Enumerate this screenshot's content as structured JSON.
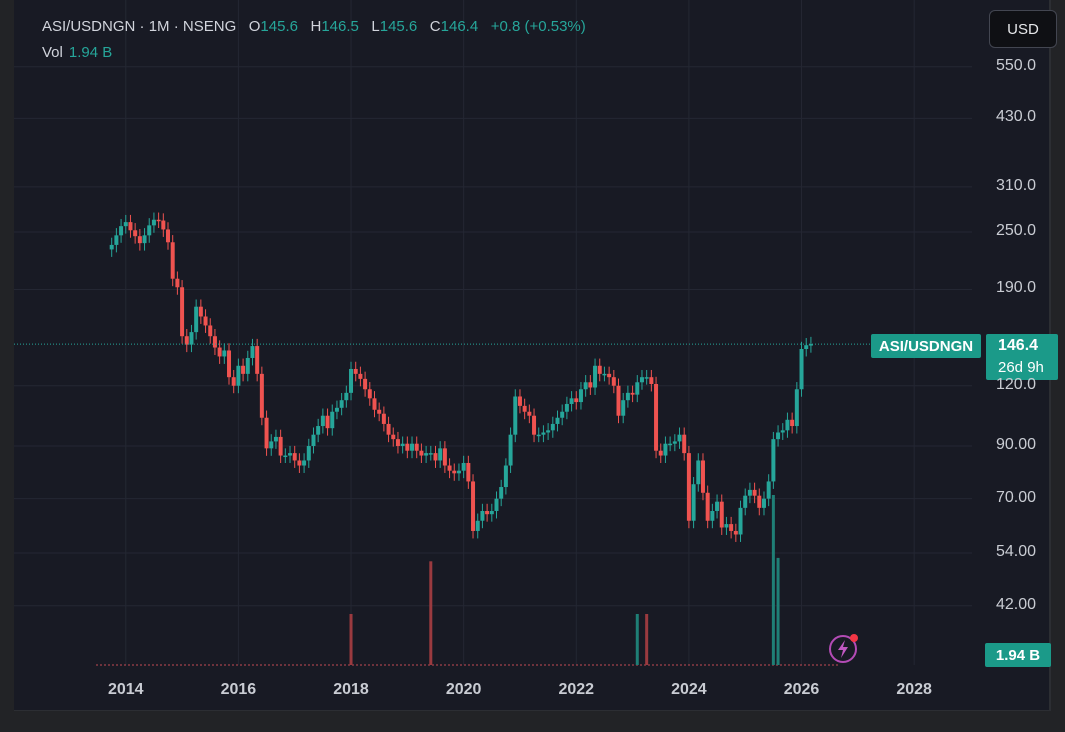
{
  "header": {
    "symbol": "ASI/USDNGN",
    "interval": "1M",
    "exchange": "NSENG",
    "open_label": "O",
    "open": "145.6",
    "high_label": "H",
    "high": "146.5",
    "low_label": "L",
    "low": "145.6",
    "close_label": "C",
    "close": "146.4",
    "change": "+0.8 (+0.53%)",
    "volume_label": "Vol",
    "volume": "1.94 B"
  },
  "currency_button": "USD",
  "price_label": {
    "symbol": "ASI/USDNGN",
    "price": "146.4",
    "countdown": "26d 9h"
  },
  "volume_axis_label": "1.94 B",
  "colors": {
    "up": "#26a69a",
    "down": "#ef5350",
    "background": "#181a24",
    "grid": "#242733"
  },
  "icons": [
    "lightning-icon"
  ],
  "chart_data": {
    "type": "candlestick",
    "y_scale": "log",
    "ylim": [
      36,
      640
    ],
    "y_ticks": [
      "550.0",
      "430.0",
      "310.0",
      "250.0",
      "190.0",
      "120.0",
      "90.00",
      "70.00",
      "54.00",
      "42.00"
    ],
    "x_ticks": [
      "2014",
      "2016",
      "2018",
      "2020",
      "2022",
      "2024",
      "2026",
      "2028"
    ],
    "xlim": [
      "2013-09",
      "2028-08"
    ],
    "last_price": 146.4,
    "grid": true,
    "volume_bars": [
      {
        "date": "2018-01",
        "direction": "down",
        "relative": 0.3
      },
      {
        "date": "2019-06",
        "direction": "down",
        "relative": 0.61
      },
      {
        "date": "2023-02",
        "direction": "up",
        "relative": 0.3
      },
      {
        "date": "2023-04",
        "direction": "down",
        "relative": 0.3
      },
      {
        "date": "2025-07",
        "direction": "up",
        "relative": 1.0
      },
      {
        "date": "2025-08",
        "direction": "up",
        "relative": 0.63
      }
    ],
    "closes": [
      [
        "2013-10",
        235
      ],
      [
        "2013-11",
        246
      ],
      [
        "2013-12",
        257
      ],
      [
        "2014-01",
        262
      ],
      [
        "2014-02",
        252
      ],
      [
        "2014-03",
        245
      ],
      [
        "2014-04",
        237
      ],
      [
        "2014-05",
        246
      ],
      [
        "2014-06",
        258
      ],
      [
        "2014-07",
        265
      ],
      [
        "2014-08",
        264
      ],
      [
        "2014-09",
        253
      ],
      [
        "2014-10",
        238
      ],
      [
        "2014-11",
        200
      ],
      [
        "2014-12",
        192
      ],
      [
        "2015-01",
        152
      ],
      [
        "2015-02",
        146
      ],
      [
        "2015-03",
        155
      ],
      [
        "2015-04",
        175
      ],
      [
        "2015-05",
        167
      ],
      [
        "2015-06",
        160
      ],
      [
        "2015-07",
        152
      ],
      [
        "2015-08",
        144
      ],
      [
        "2015-09",
        138
      ],
      [
        "2015-10",
        142
      ],
      [
        "2015-11",
        125
      ],
      [
        "2015-12",
        120
      ],
      [
        "2016-01",
        132
      ],
      [
        "2016-02",
        127
      ],
      [
        "2016-03",
        137
      ],
      [
        "2016-04",
        145
      ],
      [
        "2016-05",
        127
      ],
      [
        "2016-06",
        103
      ],
      [
        "2016-07",
        89
      ],
      [
        "2016-08",
        92
      ],
      [
        "2016-09",
        94
      ],
      [
        "2016-10",
        86
      ],
      [
        "2016-11",
        86
      ],
      [
        "2016-12",
        87
      ],
      [
        "2017-01",
        84
      ],
      [
        "2017-02",
        82
      ],
      [
        "2017-03",
        84
      ],
      [
        "2017-04",
        90
      ],
      [
        "2017-05",
        95
      ],
      [
        "2017-06",
        99
      ],
      [
        "2017-07",
        104
      ],
      [
        "2017-08",
        98
      ],
      [
        "2017-09",
        106
      ],
      [
        "2017-10",
        108
      ],
      [
        "2017-11",
        112
      ],
      [
        "2017-12",
        116
      ],
      [
        "2018-01",
        130
      ],
      [
        "2018-02",
        127
      ],
      [
        "2018-03",
        124
      ],
      [
        "2018-04",
        118
      ],
      [
        "2018-05",
        113
      ],
      [
        "2018-06",
        107
      ],
      [
        "2018-07",
        105
      ],
      [
        "2018-08",
        100
      ],
      [
        "2018-09",
        95
      ],
      [
        "2018-10",
        93
      ],
      [
        "2018-11",
        90
      ],
      [
        "2018-12",
        91
      ],
      [
        "2019-01",
        88
      ],
      [
        "2019-02",
        91
      ],
      [
        "2019-03",
        88
      ],
      [
        "2019-04",
        86
      ],
      [
        "2019-05",
        87
      ],
      [
        "2019-06",
        87
      ],
      [
        "2019-07",
        84
      ],
      [
        "2019-08",
        89
      ],
      [
        "2019-09",
        82
      ],
      [
        "2019-10",
        80
      ],
      [
        "2019-11",
        79
      ],
      [
        "2019-12",
        80
      ],
      [
        "2020-01",
        83
      ],
      [
        "2020-02",
        76
      ],
      [
        "2020-03",
        60
      ],
      [
        "2020-04",
        63
      ],
      [
        "2020-05",
        66
      ],
      [
        "2020-06",
        65
      ],
      [
        "2020-07",
        66
      ],
      [
        "2020-08",
        70
      ],
      [
        "2020-09",
        74
      ],
      [
        "2020-10",
        82
      ],
      [
        "2020-11",
        95
      ],
      [
        "2020-12",
        114
      ],
      [
        "2021-01",
        109
      ],
      [
        "2021-02",
        106
      ],
      [
        "2021-03",
        104
      ],
      [
        "2021-04",
        95
      ],
      [
        "2021-05",
        95
      ],
      [
        "2021-06",
        96
      ],
      [
        "2021-07",
        97
      ],
      [
        "2021-08",
        100
      ],
      [
        "2021-09",
        103
      ],
      [
        "2021-10",
        106
      ],
      [
        "2021-11",
        110
      ],
      [
        "2021-12",
        113
      ],
      [
        "2022-01",
        111
      ],
      [
        "2022-02",
        118
      ],
      [
        "2022-03",
        122
      ],
      [
        "2022-04",
        119
      ],
      [
        "2022-05",
        132
      ],
      [
        "2022-06",
        127
      ],
      [
        "2022-07",
        127
      ],
      [
        "2022-08",
        125
      ],
      [
        "2022-09",
        120
      ],
      [
        "2022-10",
        104
      ],
      [
        "2022-11",
        112
      ],
      [
        "2022-12",
        116
      ],
      [
        "2023-01",
        115
      ],
      [
        "2023-02",
        122
      ],
      [
        "2023-03",
        125
      ],
      [
        "2023-04",
        125
      ],
      [
        "2023-05",
        121
      ],
      [
        "2023-06",
        88
      ],
      [
        "2023-07",
        86
      ],
      [
        "2023-08",
        91
      ],
      [
        "2023-09",
        91
      ],
      [
        "2023-10",
        92
      ],
      [
        "2023-11",
        95
      ],
      [
        "2023-12",
        87
      ],
      [
        "2024-01",
        63
      ],
      [
        "2024-02",
        75
      ],
      [
        "2024-03",
        84
      ],
      [
        "2024-04",
        72
      ],
      [
        "2024-05",
        63
      ],
      [
        "2024-06",
        66
      ],
      [
        "2024-07",
        69
      ],
      [
        "2024-08",
        61
      ],
      [
        "2024-09",
        62
      ],
      [
        "2024-10",
        60
      ],
      [
        "2024-11",
        59
      ],
      [
        "2024-12",
        67
      ],
      [
        "2025-01",
        71
      ],
      [
        "2025-02",
        73
      ],
      [
        "2025-03",
        71
      ],
      [
        "2025-04",
        67
      ],
      [
        "2025-05",
        70
      ],
      [
        "2025-06",
        76
      ],
      [
        "2025-07",
        93
      ],
      [
        "2025-08",
        96
      ],
      [
        "2025-09",
        97
      ],
      [
        "2025-10",
        102
      ],
      [
        "2025-11",
        99
      ],
      [
        "2025-12",
        118
      ],
      [
        "2026-01",
        143
      ],
      [
        "2026-02",
        145.6
      ],
      [
        "2026-03",
        146.4
      ]
    ],
    "first_open": 230
  }
}
